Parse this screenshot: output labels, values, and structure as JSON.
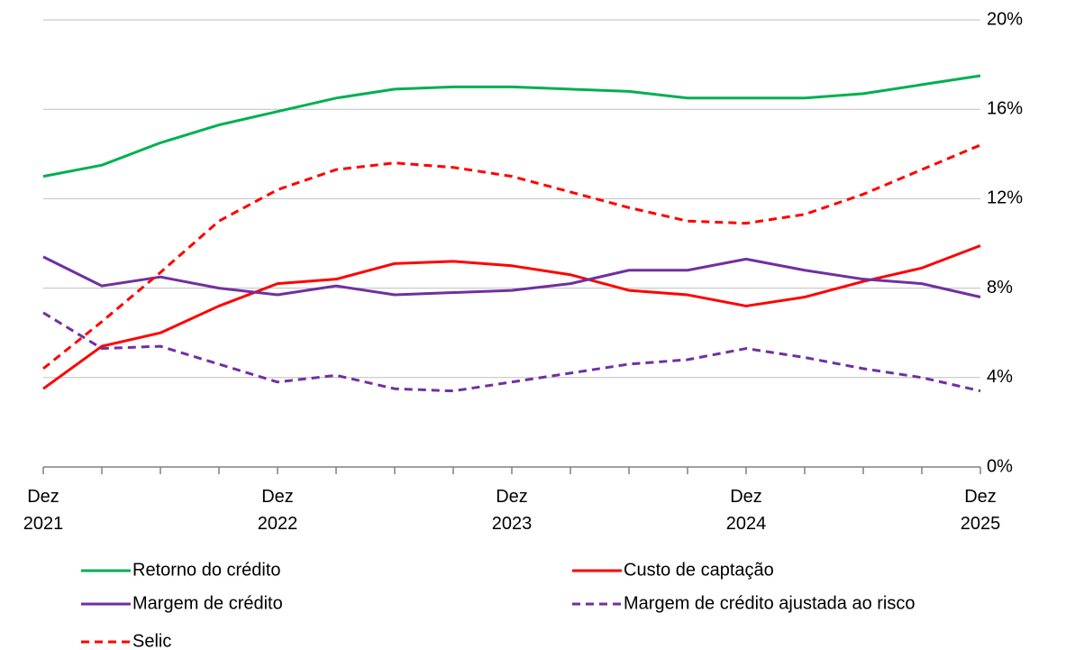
{
  "chart_data": {
    "type": "line",
    "categories": [
      "Dez\n2021",
      null,
      null,
      null,
      "Dez\n2022",
      null,
      null,
      null,
      "Dez\n2023",
      null,
      null,
      null,
      "Dez\n2024",
      null,
      null,
      null,
      "Dez\n2025"
    ],
    "series": [
      {
        "name": "Retorno do crédito",
        "color": "#00b050",
        "dash": false,
        "values": [
          13.0,
          13.5,
          14.5,
          15.3,
          15.9,
          16.5,
          16.9,
          17.0,
          17.0,
          16.9,
          16.8,
          16.5,
          16.5,
          16.5,
          16.7,
          17.1,
          17.5
        ]
      },
      {
        "name": "Custo de captação",
        "color": "#ff0000",
        "dash": false,
        "values": [
          3.5,
          5.4,
          6.0,
          7.2,
          8.2,
          8.4,
          9.1,
          9.2,
          9.0,
          8.6,
          7.9,
          7.7,
          7.2,
          7.6,
          8.3,
          8.9,
          9.9
        ]
      },
      {
        "name": "Margem de crédito",
        "color": "#7030a0",
        "dash": false,
        "values": [
          9.4,
          8.1,
          8.5,
          8.0,
          7.7,
          8.1,
          7.7,
          7.8,
          7.9,
          8.2,
          8.8,
          8.8,
          9.3,
          8.8,
          8.4,
          8.2,
          7.6
        ]
      },
      {
        "name": "Margem de crédito ajustada ao risco",
        "color": "#7030a0",
        "dash": true,
        "values": [
          6.9,
          5.3,
          5.4,
          4.6,
          3.8,
          4.1,
          3.5,
          3.4,
          3.8,
          4.2,
          4.6,
          4.8,
          5.3,
          4.9,
          4.4,
          4.0,
          3.4
        ]
      },
      {
        "name": "Selic",
        "color": "#ff0000",
        "dash": true,
        "values": [
          4.4,
          6.5,
          8.7,
          11.0,
          12.4,
          13.3,
          13.6,
          13.4,
          13.0,
          12.3,
          11.6,
          11.0,
          10.9,
          11.3,
          12.2,
          13.3,
          14.4
        ]
      }
    ],
    "ylim": [
      0,
      20
    ],
    "yticks": [
      {
        "value": 0,
        "label": "0%"
      },
      {
        "value": 4,
        "label": "4%"
      },
      {
        "value": 8,
        "label": "8%"
      },
      {
        "value": 12,
        "label": "12%"
      },
      {
        "value": 16,
        "label": "16%"
      },
      {
        "value": 20,
        "label": "20%"
      }
    ],
    "grid": true,
    "legend": "bottom"
  }
}
